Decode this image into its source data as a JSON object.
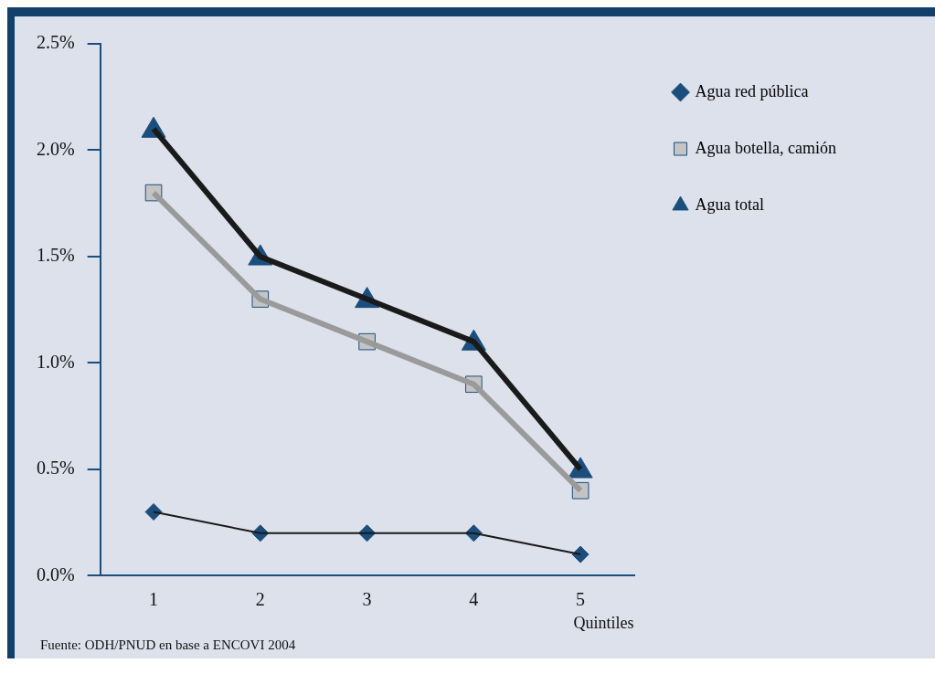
{
  "chart_data": {
    "type": "line",
    "categories": [
      "1",
      "2",
      "3",
      "4",
      "5"
    ],
    "xlabel": "Quintiles",
    "ylim": [
      0,
      2.5
    ],
    "yticks": [
      {
        "value": 0,
        "label": "0.0%"
      },
      {
        "value": 0.5,
        "label": "0.5%"
      },
      {
        "value": 1,
        "label": "1.0%"
      },
      {
        "value": 1.5,
        "label": "1.5%"
      },
      {
        "value": 2,
        "label": "2.0%"
      },
      {
        "value": 2.5,
        "label": "2.5%"
      }
    ],
    "grid": false,
    "legend": "top right",
    "series": [
      {
        "name": "Agua red pública",
        "color": "#1a1a1a",
        "marker": "diamond",
        "values": [
          0.3,
          0.2,
          0.2,
          0.2,
          0.1
        ]
      },
      {
        "name": "Agua botella, camión",
        "color": "#9a9a9a",
        "marker": "square",
        "values": [
          1.8,
          1.3,
          1.1,
          0.9,
          0.4
        ]
      },
      {
        "name": "Agua total",
        "color": "#1a1a1a",
        "marker": "triangle",
        "values": [
          2.1,
          1.5,
          1.3,
          1.1,
          0.5
        ]
      }
    ],
    "annotations": [
      "Fuente: ODH/PNUD en base a ENCOVI 2004"
    ]
  }
}
